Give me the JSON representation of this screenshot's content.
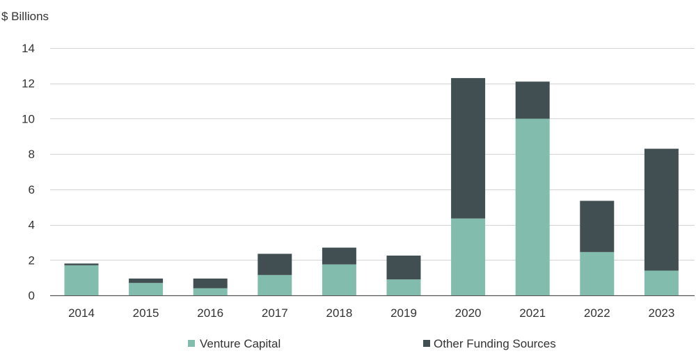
{
  "chart_data": {
    "type": "bar",
    "stacked": true,
    "ylabel": "$ Billions",
    "ylim": [
      0,
      14
    ],
    "yticks": [
      0,
      2,
      4,
      6,
      8,
      10,
      12,
      14
    ],
    "grid": true,
    "legend_position": "bottom",
    "categories": [
      "2014",
      "2015",
      "2016",
      "2017",
      "2018",
      "2019",
      "2020",
      "2021",
      "2022",
      "2023"
    ],
    "series": [
      {
        "name": "Venture Capital",
        "color": "#82bcac",
        "values": [
          1.7,
          0.7,
          0.4,
          1.15,
          1.75,
          0.9,
          4.35,
          10.0,
          2.45,
          1.4
        ]
      },
      {
        "name": "Other Funding Sources",
        "color": "#414f52",
        "values": [
          0.1,
          0.25,
          0.55,
          1.2,
          0.95,
          1.35,
          7.95,
          2.1,
          2.9,
          6.9
        ]
      }
    ]
  }
}
